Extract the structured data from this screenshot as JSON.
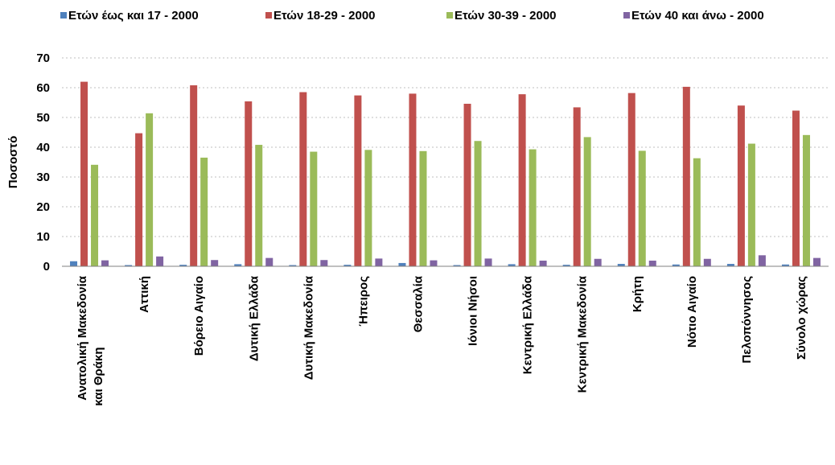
{
  "chart_data": {
    "type": "bar",
    "ylabel": "Ποσοστό",
    "ylim": [
      0,
      70
    ],
    "yticks": [
      0,
      10,
      20,
      30,
      40,
      50,
      60,
      70
    ],
    "grid": true,
    "legend_position": "top",
    "categories": [
      "Ανατολική Μακεδονία και Θράκη",
      "Αττική",
      "Βόρειο Αιγαίο",
      "Δυτική Ελλάδα",
      "Δυτική Μακεδονία",
      "Ήπειρος",
      "Θεσσαλία",
      "Ιόνιοι Νήσοι",
      "Κεντρική Ελλάδα",
      "Κεντρική Μακεδονία",
      "Κρήτη",
      "Νότιο Αιγαίο",
      "Πελοπόννησος",
      "Σύνολο χώρας"
    ],
    "series": [
      {
        "name": "Ετών έως και 17 - 2000",
        "color": "#4f81bd",
        "values": [
          1.7,
          0.4,
          0.5,
          0.7,
          0.4,
          0.5,
          1.1,
          0.4,
          0.7,
          0.5,
          0.8,
          0.6,
          0.8,
          0.6
        ]
      },
      {
        "name": "Ετών 18-29  - 2000",
        "color": "#c0504d",
        "values": [
          62.0,
          44.7,
          60.8,
          55.4,
          58.5,
          57.4,
          58.0,
          54.6,
          57.8,
          53.4,
          58.2,
          60.3,
          54.0,
          52.3
        ]
      },
      {
        "name": "Ετών 30-39  - 2000",
        "color": "#9bbb59",
        "values": [
          34.1,
          51.4,
          36.5,
          40.8,
          38.5,
          39.1,
          38.7,
          42.1,
          39.3,
          43.4,
          38.8,
          36.3,
          41.2,
          44.1
        ]
      },
      {
        "name": "Ετών 40 και άνω - 2000",
        "color": "#8064a2",
        "values": [
          2.0,
          3.3,
          2.1,
          2.8,
          2.1,
          2.6,
          2.0,
          2.6,
          1.9,
          2.5,
          1.9,
          2.5,
          3.7,
          2.8
        ]
      }
    ]
  }
}
